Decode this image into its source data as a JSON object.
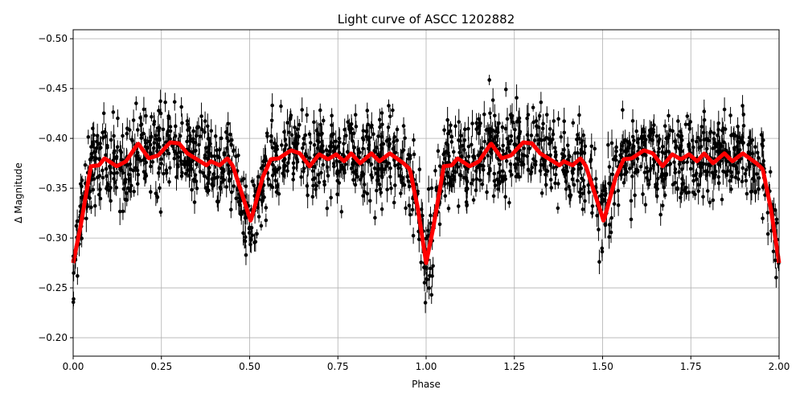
{
  "chart_data": {
    "type": "scatter",
    "title": "Light curve of ASCC 1202882",
    "xlabel": "Phase",
    "ylabel": "Δ Magnitude",
    "xlim": [
      0,
      2
    ],
    "ylim": [
      -0.1815,
      -0.509
    ],
    "y_inverted": true,
    "grid": true,
    "x_ticks": [
      "0.00",
      "0.25",
      "0.50",
      "0.75",
      "1.00",
      "1.25",
      "1.50",
      "1.75",
      "2.00"
    ],
    "x_tick_values": [
      0,
      0.25,
      0.5,
      0.75,
      1,
      1.25,
      1.5,
      1.75,
      2
    ],
    "y_ticks": [
      "−0.50",
      "−0.45",
      "−0.40",
      "−0.35",
      "−0.30",
      "−0.25",
      "−0.20"
    ],
    "y_tick_values": [
      -0.5,
      -0.45,
      -0.4,
      -0.35,
      -0.3,
      -0.25,
      -0.2
    ],
    "series": [
      {
        "kind": "errorbar-scatter",
        "color": "#000000",
        "note_scatter_about_model": 0.04
      },
      {
        "kind": "model-line",
        "color": "#ff0000",
        "period_repeat": 1,
        "phase": [
          0,
          0.02,
          0.05,
          0.073,
          0.089,
          0.123,
          0.15,
          0.184,
          0.214,
          0.241,
          0.275,
          0.3,
          0.323,
          0.378,
          0.39,
          0.415,
          0.437,
          0.453,
          0.503,
          0.537,
          0.56,
          0.583,
          0.617,
          0.642,
          0.67,
          0.697,
          0.722,
          0.745,
          0.768,
          0.788,
          0.813,
          0.845,
          0.868,
          0.897,
          0.936,
          0.954,
          0.977,
          1.0
        ],
        "magnitude": [
          -0.275,
          -0.31,
          -0.372,
          -0.373,
          -0.38,
          -0.372,
          -0.377,
          -0.395,
          -0.38,
          -0.383,
          -0.396,
          -0.395,
          -0.385,
          -0.373,
          -0.377,
          -0.373,
          -0.38,
          -0.372,
          -0.317,
          -0.361,
          -0.379,
          -0.38,
          -0.388,
          -0.385,
          -0.372,
          -0.384,
          -0.379,
          -0.384,
          -0.377,
          -0.385,
          -0.375,
          -0.385,
          -0.377,
          -0.385,
          -0.375,
          -0.369,
          -0.329,
          -0.275
        ]
      }
    ]
  }
}
